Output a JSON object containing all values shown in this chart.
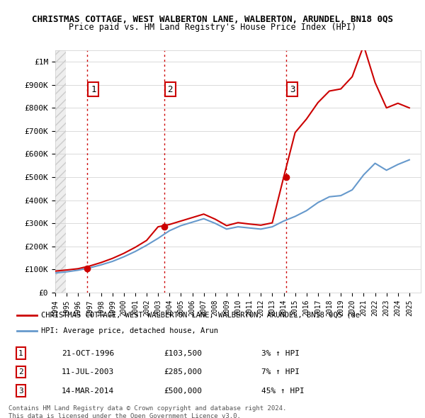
{
  "title": "CHRISTMAS COTTAGE, WEST WALBERTON LANE, WALBERTON, ARUNDEL, BN18 0QS",
  "subtitle": "Price paid vs. HM Land Registry's House Price Index (HPI)",
  "xlim": [
    1994.0,
    2026.0
  ],
  "ylim": [
    0,
    1050000
  ],
  "yticks": [
    0,
    100000,
    200000,
    300000,
    400000,
    500000,
    600000,
    700000,
    800000,
    900000,
    1000000
  ],
  "ytick_labels": [
    "£0",
    "£100K",
    "£200K",
    "£300K",
    "£400K",
    "£500K",
    "£600K",
    "£700K",
    "£800K",
    "£900K",
    "£1M"
  ],
  "xticks": [
    1994,
    1995,
    1996,
    1997,
    1998,
    1999,
    2000,
    2001,
    2002,
    2003,
    2004,
    2005,
    2006,
    2007,
    2008,
    2009,
    2010,
    2011,
    2012,
    2013,
    2014,
    2015,
    2016,
    2017,
    2018,
    2019,
    2020,
    2021,
    2022,
    2023,
    2024,
    2025
  ],
  "sale_dates": [
    1996.81,
    2003.53,
    2014.21
  ],
  "sale_prices": [
    103500,
    285000,
    500000
  ],
  "sale_labels": [
    "1",
    "2",
    "3"
  ],
  "vline_color": "#cc0000",
  "vline_style": "dotted",
  "sale_point_color": "#cc0000",
  "red_line_color": "#cc0000",
  "blue_line_color": "#6699cc",
  "background_hatch_color": "#e8e8e8",
  "legend_label_red": "CHRISTMAS COTTAGE, WEST WALBERTON LANE, WALBERTON, ARUNDEL, BN18 0QS (de",
  "legend_label_blue": "HPI: Average price, detached house, Arun",
  "table_rows": [
    [
      "1",
      "21-OCT-1996",
      "£103,500",
      "3% ↑ HPI"
    ],
    [
      "2",
      "11-JUL-2003",
      "£285,000",
      "7% ↑ HPI"
    ],
    [
      "3",
      "14-MAR-2014",
      "£500,000",
      "45% ↑ HPI"
    ]
  ],
  "footer_text": "Contains HM Land Registry data © Crown copyright and database right 2024.\nThis data is licensed under the Open Government Licence v3.0.",
  "hpi_years": [
    1994,
    1995,
    1996,
    1997,
    1998,
    1999,
    2000,
    2001,
    2002,
    2003,
    2004,
    2005,
    2006,
    2007,
    2008,
    2009,
    2010,
    2011,
    2012,
    2013,
    2014,
    2015,
    2016,
    2017,
    2018,
    2019,
    2020,
    2021,
    2022,
    2023,
    2024,
    2025
  ],
  "hpi_values": [
    85000,
    90000,
    97000,
    107000,
    120000,
    135000,
    155000,
    178000,
    205000,
    235000,
    268000,
    290000,
    305000,
    320000,
    300000,
    275000,
    285000,
    280000,
    275000,
    285000,
    310000,
    330000,
    355000,
    390000,
    415000,
    420000,
    445000,
    510000,
    560000,
    530000,
    555000,
    575000
  ],
  "red_line_years": [
    1994,
    1995,
    1996,
    1997,
    1998,
    1999,
    2000,
    2001,
    2002,
    2003,
    2004,
    2005,
    2006,
    2007,
    2008,
    2009,
    2010,
    2011,
    2012,
    2013,
    2014,
    2015,
    2016,
    2017,
    2018,
    2019,
    2020,
    2021,
    2022,
    2023,
    2024,
    2025
  ],
  "red_line_values": [
    93000,
    98000,
    103500,
    115000,
    130000,
    148000,
    170000,
    196000,
    226000,
    285000,
    295000,
    310000,
    325000,
    340000,
    318000,
    290000,
    303000,
    297000,
    292000,
    302000,
    500000,
    693000,
    752000,
    823000,
    873000,
    882000,
    935000,
    1070000,
    910000,
    800000,
    820000,
    800000
  ]
}
